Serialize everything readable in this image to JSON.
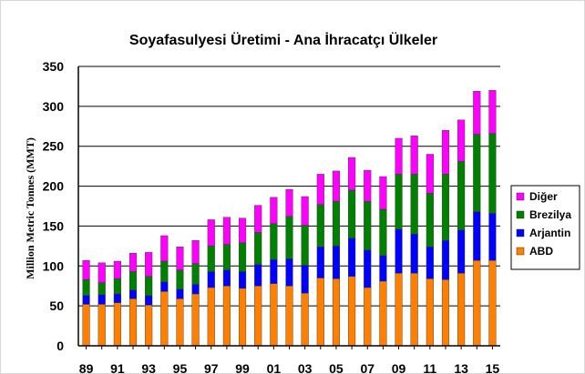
{
  "chart_data": {
    "type": "bar",
    "stacked": true,
    "title": "Soyafasulyesi Üretimi - Ana İhracatçı Ülkeler",
    "ylabel": "Million Metric Tonnes (MMT)",
    "xlabel": "",
    "ylim": [
      0,
      350
    ],
    "yticks": [
      0,
      50,
      100,
      150,
      200,
      250,
      300,
      350
    ],
    "grid": true,
    "legend_position": "right",
    "categories": [
      "89",
      "90",
      "91",
      "92",
      "93",
      "94",
      "95",
      "96",
      "97",
      "98",
      "99",
      "00",
      "01",
      "02",
      "03",
      "04",
      "05",
      "06",
      "07",
      "08",
      "09",
      "10",
      "11",
      "12",
      "13",
      "14",
      "15"
    ],
    "xtick_labels": [
      "89",
      "91",
      "93",
      "95",
      "97",
      "99",
      "01",
      "03",
      "05",
      "07",
      "09",
      "11",
      "13",
      "15"
    ],
    "series": [
      {
        "name": "ABD",
        "color": "#FF8000",
        "values": [
          52,
          52,
          54,
          59,
          51,
          68,
          59,
          65,
          73,
          75,
          72,
          75,
          78,
          75,
          66,
          85,
          84,
          87,
          73,
          81,
          91,
          91,
          84,
          83,
          91,
          107,
          107
        ]
      },
      {
        "name": "Arjantin",
        "color": "#0000FF",
        "values": [
          11,
          12,
          11,
          11,
          12,
          12,
          12,
          12,
          20,
          20,
          21,
          27,
          30,
          34,
          35,
          39,
          41,
          48,
          47,
          32,
          55,
          49,
          40,
          49,
          54,
          61,
          59
        ]
      },
      {
        "name": "Brezilya",
        "color": "#008000",
        "values": [
          20,
          15,
          19,
          23,
          24,
          26,
          24,
          26,
          32,
          32,
          36,
          40,
          45,
          53,
          50,
          53,
          56,
          60,
          61,
          58,
          69,
          75,
          67,
          83,
          86,
          97,
          100
        ]
      },
      {
        "name": "Diğer",
        "color": "#FF00FF",
        "values": [
          24,
          25,
          22,
          23,
          30,
          32,
          29,
          29,
          33,
          34,
          31,
          34,
          33,
          34,
          36,
          38,
          38,
          41,
          39,
          41,
          45,
          48,
          49,
          55,
          52,
          54,
          54
        ]
      }
    ],
    "legend_order": [
      "Diğer",
      "Brezilya",
      "Arjantin",
      "ABD"
    ]
  }
}
